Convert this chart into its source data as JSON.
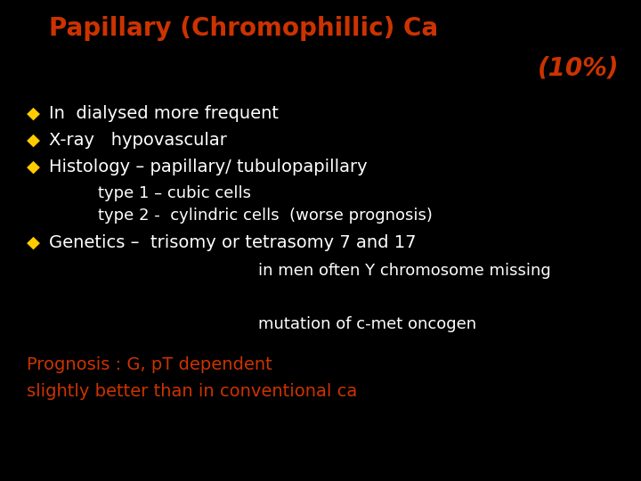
{
  "background_color": "#000000",
  "title_line1": "Papillary (Chromophillic) Ca",
  "title_line2": "(10%)",
  "title_color": "#cc3300",
  "bullet_color": "#ffcc00",
  "bullet_char": "◆",
  "white_text": "#ffffff",
  "orange_text": "#cc3300",
  "bullets": [
    "In  dialysed more frequent",
    "X-ray   hypovascular",
    "Histology – papillary/ tubulopapillary"
  ],
  "sub_bullets": [
    "type 1 – cubic cells",
    "type 2 -  cylindric cells  (worse prognosis)"
  ],
  "bullet4": "Genetics –  trisomy or tetrasomy 7 and 17",
  "sub4": "in men often Y chromosome missing",
  "sub5": "mutation of c-met oncogen",
  "prognosis_line1": "Prognosis : G, pT dependent",
  "prognosis_line2": "slightly better than in conventional ca",
  "title_fontsize": 20,
  "bullet_fontsize": 14,
  "sub_fontsize": 13,
  "prognosis_fontsize": 14
}
